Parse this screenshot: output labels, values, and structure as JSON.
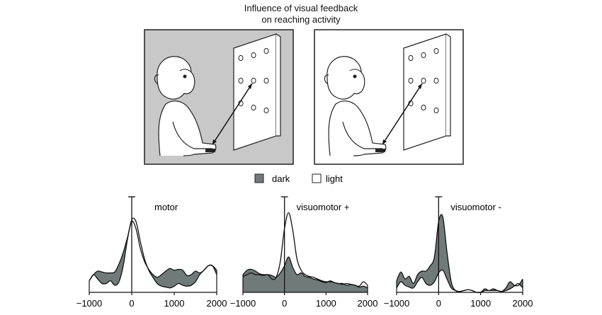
{
  "title_line1": "Influence of visual feedback",
  "title_line2": "on reaching activity",
  "scenes": [
    {
      "condition": "dark",
      "background": "#c8c8c8"
    },
    {
      "condition": "light",
      "background": "#ffffff"
    }
  ],
  "legend": {
    "dark_label": "dark",
    "light_label": "light",
    "dark_color": "#707b79",
    "light_color": "#ffffff"
  },
  "chart_data": [
    {
      "type": "area",
      "title": "motor",
      "xlabel": "",
      "ylabel": "",
      "xlim": [
        -1000,
        2000
      ],
      "xticks": [
        -1000,
        0,
        1000,
        2000
      ],
      "xtick_labels": [
        "−1000",
        "0",
        "1000",
        "2000"
      ],
      "ylim": [
        0,
        1
      ],
      "grid": false,
      "shading": "between",
      "x": [
        -1000,
        -900,
        -800,
        -700,
        -600,
        -500,
        -400,
        -300,
        -200,
        -100,
        0,
        100,
        200,
        300,
        400,
        500,
        600,
        700,
        800,
        900,
        1000,
        1100,
        1200,
        1300,
        1400,
        1500,
        1600,
        1700,
        1800,
        1900,
        2000
      ],
      "series": [
        {
          "name": "dark",
          "values": [
            0.13,
            0.2,
            0.24,
            0.23,
            0.22,
            0.22,
            0.23,
            0.32,
            0.45,
            0.62,
            0.8,
            0.72,
            0.5,
            0.35,
            0.26,
            0.2,
            0.17,
            0.2,
            0.24,
            0.27,
            0.25,
            0.26,
            0.25,
            0.19,
            0.2,
            0.24,
            0.22,
            0.25,
            0.3,
            0.3,
            0.25
          ]
        },
        {
          "name": "light",
          "values": [
            0.13,
            0.2,
            0.15,
            0.1,
            0.1,
            0.13,
            0.08,
            0.12,
            0.3,
            0.6,
            0.82,
            0.8,
            0.58,
            0.38,
            0.25,
            0.17,
            0.1,
            0.07,
            0.06,
            0.05,
            0.07,
            0.1,
            0.08,
            0.07,
            0.08,
            0.12,
            0.2,
            0.25,
            0.3,
            0.3,
            0.2
          ]
        }
      ]
    },
    {
      "type": "area",
      "title": "visuomotor +",
      "xlabel": "",
      "ylabel": "",
      "xlim": [
        -1000,
        2000
      ],
      "xticks": [
        -1000,
        0,
        1000,
        2000
      ],
      "xtick_labels": [
        "−1000",
        "0",
        "1000",
        "2000"
      ],
      "ylim": [
        0,
        1
      ],
      "grid": false,
      "shading": "dark-area",
      "x": [
        -1000,
        -900,
        -800,
        -700,
        -600,
        -500,
        -400,
        -300,
        -200,
        -100,
        0,
        100,
        200,
        300,
        400,
        500,
        600,
        700,
        800,
        900,
        1000,
        1100,
        1200,
        1300,
        1400,
        1500,
        1600,
        1700,
        1800,
        1900,
        2000
      ],
      "series": [
        {
          "name": "dark",
          "values": [
            0.2,
            0.25,
            0.26,
            0.24,
            0.21,
            0.2,
            0.2,
            0.19,
            0.17,
            0.22,
            0.3,
            0.4,
            0.28,
            0.2,
            0.22,
            0.18,
            0.17,
            0.15,
            0.14,
            0.12,
            0.11,
            0.13,
            0.11,
            0.1,
            0.1,
            0.08,
            0.09,
            0.08,
            0.06,
            0.07,
            0.05
          ]
        },
        {
          "name": "light",
          "values": [
            0.18,
            0.2,
            0.22,
            0.2,
            0.2,
            0.19,
            0.2,
            0.15,
            0.17,
            0.35,
            0.72,
            0.9,
            0.7,
            0.38,
            0.25,
            0.2,
            0.18,
            0.17,
            0.15,
            0.13,
            0.12,
            0.12,
            0.11,
            0.1,
            0.09,
            0.1,
            0.09,
            0.08,
            0.07,
            0.12,
            0.08
          ]
        }
      ]
    },
    {
      "type": "area",
      "title": "visuomotor -",
      "xlabel": "",
      "ylabel": "",
      "xlim": [
        -1000,
        2000
      ],
      "xticks": [
        -1000,
        0,
        1000,
        2000
      ],
      "xtick_labels": [
        "−1000",
        "0",
        "1000",
        "2000"
      ],
      "ylim": [
        0,
        1
      ],
      "grid": false,
      "shading": "between",
      "x": [
        -1000,
        -900,
        -800,
        -700,
        -600,
        -500,
        -400,
        -300,
        -200,
        -100,
        0,
        100,
        200,
        300,
        400,
        500,
        600,
        700,
        800,
        900,
        1000,
        1100,
        1200,
        1300,
        1400,
        1500,
        1600,
        1700,
        1800,
        1900,
        2000
      ],
      "series": [
        {
          "name": "dark",
          "values": [
            0.13,
            0.23,
            0.15,
            0.18,
            0.1,
            0.2,
            0.24,
            0.24,
            0.3,
            0.4,
            0.8,
            0.85,
            0.45,
            0.12,
            0.02,
            0.01,
            0.02,
            0.03,
            0.02,
            0.0,
            0.0,
            0.04,
            0.02,
            0.04,
            0.02,
            0.01,
            0.05,
            0.12,
            0.08,
            0.08,
            0.15
          ]
        },
        {
          "name": "light",
          "values": [
            0.05,
            0.12,
            0.08,
            0.06,
            0.05,
            0.12,
            0.17,
            0.1,
            0.08,
            0.12,
            0.22,
            0.25,
            0.15,
            0.05,
            0.02,
            0.01,
            0.02,
            0.03,
            0.02,
            0.0,
            0.0,
            0.02,
            0.02,
            0.02,
            0.02,
            0.01,
            0.02,
            0.04,
            0.07,
            0.1,
            0.05
          ]
        }
      ]
    }
  ]
}
